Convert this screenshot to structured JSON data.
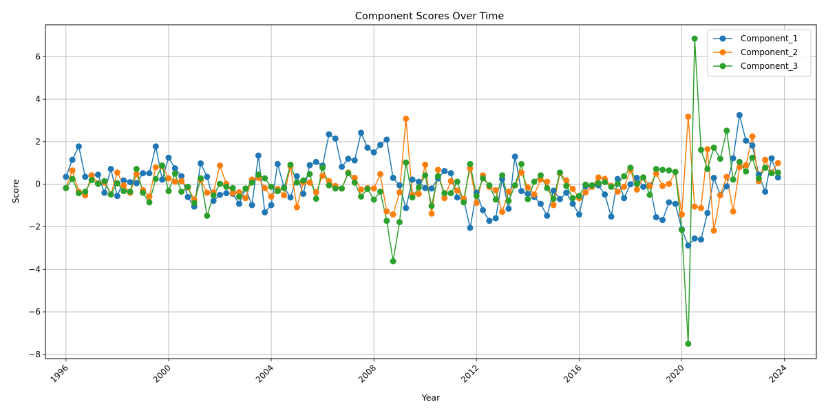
{
  "chart_data": {
    "type": "line",
    "title": "Component Scores Over Time",
    "xlabel": "Year",
    "ylabel": "Score",
    "xlim": [
      "1995-03-15",
      "2025-03-31"
    ],
    "ylim": [
      -8.2,
      7.5
    ],
    "x_ticks": [
      "1996",
      "2000",
      "2004",
      "2008",
      "2012",
      "2016",
      "2020",
      "2024"
    ],
    "y_ticks": [
      -8,
      -6,
      -4,
      -2,
      0,
      2,
      4,
      6
    ],
    "y_tick_labels": [
      "−8",
      "−6",
      "−4",
      "−2",
      "0",
      "2",
      "4",
      "6"
    ],
    "grid": true,
    "legend_position": "top-right",
    "start_period": "1996-Q1",
    "series": [
      {
        "name": "Component_1",
        "color": "#1f77b4",
        "values": [
          0.35,
          1.15,
          1.78,
          0.35,
          0.42,
          0.45,
          -0.4,
          0.72,
          -0.55,
          0.18,
          0.1,
          0.05,
          0.52,
          0.52,
          1.78,
          0.22,
          1.25,
          0.75,
          0.38,
          -0.6,
          -1.05,
          0.98,
          0.35,
          -0.78,
          -0.5,
          -0.42,
          -0.45,
          -0.92,
          -0.2,
          -0.98,
          1.35,
          -1.32,
          -0.98,
          0.95,
          -0.15,
          -0.62,
          0.38,
          -0.45,
          0.9,
          1.05,
          0.88,
          2.35,
          2.15,
          0.82,
          1.2,
          1.12,
          2.42,
          1.72,
          1.5,
          1.85,
          2.1,
          0.3,
          -0.05,
          -1.12,
          0.22,
          0.12,
          -0.18,
          -0.2,
          0.28,
          0.62,
          0.52,
          -0.62,
          -0.72,
          -2.05,
          -0.4,
          -1.22,
          -1.72,
          -1.6,
          0.25,
          -1.15,
          1.3,
          -0.32,
          -0.45,
          -0.6,
          -0.92,
          -1.48,
          -0.3,
          -0.7,
          -0.4,
          -0.92,
          -1.42,
          -0.1,
          -0.05,
          -0.05,
          -0.48,
          -1.52,
          0.25,
          -0.65,
          0.0,
          0.3,
          -0.12,
          -0.05,
          -1.55,
          -1.68,
          -0.85,
          -0.92,
          -2.12,
          -2.88,
          -2.55,
          -2.6,
          -1.35,
          0.3,
          -0.5,
          -0.1,
          1.22,
          3.25,
          2.05,
          1.82,
          0.45,
          -0.35,
          1.22,
          0.32
        ]
      },
      {
        "name": "Component_2",
        "color": "#ff7f0e",
        "values": [
          -0.18,
          0.65,
          -0.35,
          -0.52,
          0.42,
          0.05,
          0.08,
          -0.48,
          0.55,
          -0.05,
          -0.4,
          0.48,
          -0.28,
          -0.58,
          0.8,
          0.85,
          0.28,
          0.12,
          0.15,
          -0.15,
          -0.72,
          0.2,
          -0.4,
          -0.38,
          0.88,
          0.02,
          -0.42,
          -0.38,
          -0.65,
          0.22,
          0.3,
          -0.18,
          -0.58,
          -0.22,
          -0.52,
          0.85,
          -1.08,
          0.08,
          0.08,
          -0.38,
          0.4,
          0.15,
          -0.08,
          -0.2,
          0.55,
          0.3,
          -0.25,
          -0.18,
          -0.2,
          0.48,
          -1.28,
          -1.42,
          -0.38,
          3.08,
          -0.5,
          -0.45,
          0.92,
          -1.38,
          0.68,
          -0.65,
          0.15,
          -0.3,
          -0.68,
          0.75,
          -0.88,
          0.42,
          -0.12,
          -0.28,
          -1.3,
          -0.35,
          -0.05,
          0.55,
          -0.15,
          -0.48,
          0.22,
          0.12,
          -0.98,
          0.52,
          0.18,
          -0.22,
          -0.65,
          -0.38,
          -0.12,
          0.32,
          0.25,
          -0.08,
          -0.35,
          -0.12,
          0.68,
          -0.25,
          0.32,
          -0.08,
          0.5,
          -0.08,
          0.02,
          0.58,
          -1.42,
          3.18,
          -1.05,
          -1.12,
          1.65,
          -2.18,
          -0.52,
          0.35,
          -1.28,
          0.8,
          0.9,
          2.25,
          0.15,
          1.15,
          0.55,
          1.0
        ]
      },
      {
        "name": "Component_3",
        "color": "#2ca02c",
        "values": [
          -0.18,
          0.25,
          -0.42,
          -0.35,
          0.2,
          0.02,
          0.15,
          -0.48,
          0.05,
          -0.32,
          -0.35,
          0.72,
          -0.4,
          -0.85,
          0.25,
          0.88,
          -0.32,
          0.5,
          -0.35,
          -0.12,
          -0.88,
          0.28,
          -1.48,
          -0.52,
          0.02,
          -0.12,
          -0.18,
          -0.58,
          -0.2,
          0.08,
          0.45,
          0.28,
          -0.12,
          -0.32,
          -0.18,
          0.92,
          0.08,
          0.18,
          0.48,
          -0.68,
          0.78,
          -0.05,
          -0.2,
          -0.2,
          0.52,
          0.08,
          -0.58,
          -0.22,
          -0.72,
          -0.35,
          -1.72,
          -3.62,
          -1.78,
          1.02,
          -0.62,
          -0.15,
          0.42,
          -1.02,
          0.38,
          -0.42,
          -0.42,
          0.12,
          -0.85,
          0.95,
          -0.55,
          0.28,
          -0.05,
          -0.72,
          0.42,
          -0.78,
          -0.05,
          0.95,
          -0.7,
          0.12,
          0.42,
          -0.18,
          -0.68,
          0.55,
          -0.08,
          -0.65,
          -0.55,
          -0.02,
          -0.05,
          0.05,
          0.1,
          -0.12,
          0.02,
          0.38,
          0.78,
          0.02,
          0.32,
          -0.5,
          0.72,
          0.68,
          0.65,
          0.58,
          -2.15,
          -7.5,
          6.85,
          1.62,
          0.72,
          1.72,
          1.2,
          2.52,
          0.22,
          1.05,
          0.6,
          1.25,
          0.28,
          0.78,
          0.52,
          0.55
        ]
      }
    ]
  }
}
